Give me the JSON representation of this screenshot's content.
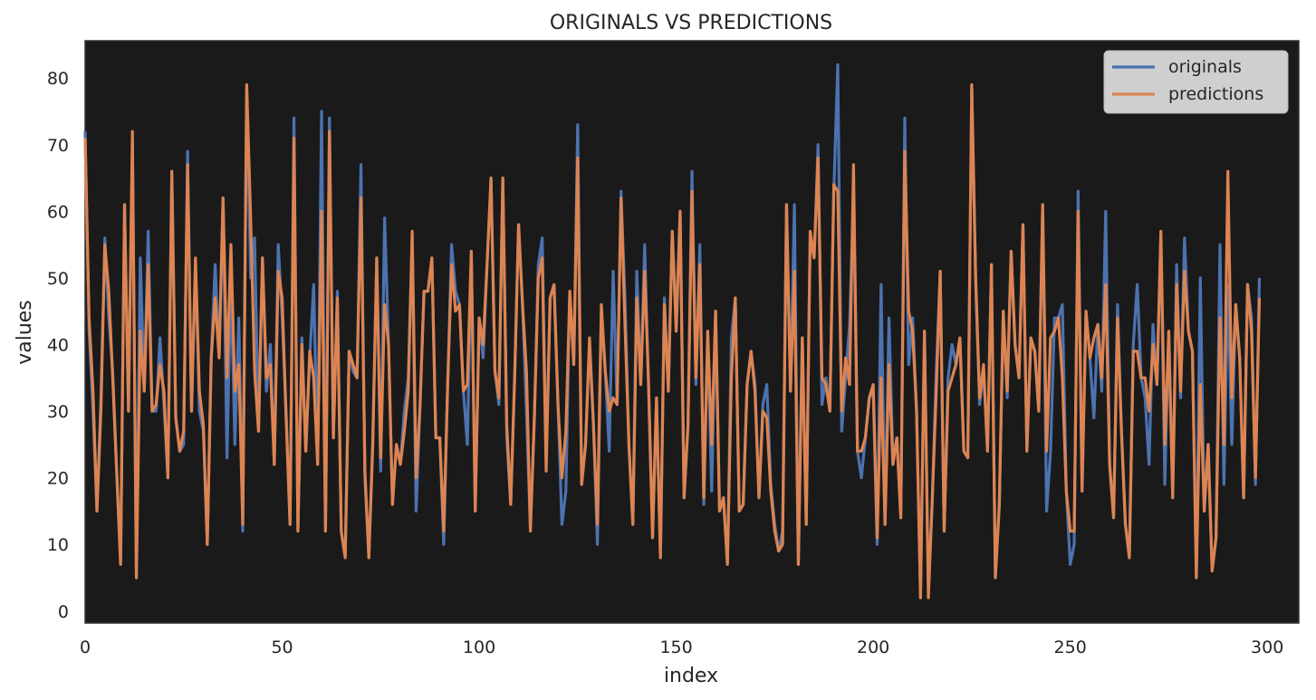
{
  "chart_data": {
    "type": "line",
    "title": "ORIGINALS VS PREDICTIONS",
    "xlabel": "index",
    "ylabel": "values",
    "xlim": [
      0,
      308
    ],
    "ylim": [
      -1.8,
      85.6
    ],
    "xticks": [
      0,
      50,
      100,
      150,
      200,
      250,
      300
    ],
    "yticks": [
      0,
      10,
      20,
      30,
      40,
      50,
      60,
      70,
      80
    ],
    "grid": false,
    "legend": "top-right",
    "background": "#1a1a1a",
    "series": [
      {
        "name": "originals",
        "color": "#4c72b0",
        "values": [
          72,
          42,
          30,
          15,
          32,
          56,
          44,
          36,
          21,
          7,
          61,
          30,
          70,
          5,
          53,
          33,
          57,
          30,
          30,
          41,
          31,
          20,
          66,
          29,
          24,
          25,
          69,
          30,
          52,
          30,
          27,
          10,
          38,
          52,
          38,
          62,
          23,
          50,
          25,
          44,
          12,
          79,
          50,
          56,
          27,
          53,
          33,
          40,
          22,
          55,
          44,
          30,
          13,
          74,
          12,
          41,
          24,
          38,
          49,
          22,
          75,
          12,
          74,
          26,
          48,
          12,
          8,
          39,
          36,
          35,
          67,
          20,
          8,
          26,
          53,
          21,
          59,
          40,
          16,
          25,
          22,
          30,
          35,
          56,
          15,
          31,
          48,
          48,
          53,
          26,
          26,
          10,
          34,
          55,
          48,
          46,
          33,
          25,
          54,
          15,
          44,
          38,
          52,
          65,
          36,
          31,
          65,
          26,
          16,
          35,
          58,
          46,
          30,
          12,
          29,
          52,
          56,
          23,
          47,
          49,
          31,
          13,
          18,
          48,
          37,
          73,
          19,
          25,
          40,
          28,
          10,
          45,
          36,
          24,
          51,
          31,
          63,
          47,
          25,
          13,
          51,
          34,
          55,
          33,
          11,
          32,
          8,
          47,
          33,
          57,
          43,
          60,
          17,
          28,
          66,
          34,
          55,
          16,
          42,
          18,
          45,
          15,
          17,
          7,
          41,
          47,
          15,
          16,
          34,
          39,
          34,
          17,
          31,
          34,
          19,
          13,
          9,
          12,
          61,
          33,
          61,
          7,
          41,
          13,
          56,
          53,
          70,
          31,
          35,
          30,
          63,
          82,
          27,
          35,
          43,
          62,
          24,
          20,
          26,
          32,
          33,
          10,
          49,
          13,
          44,
          23,
          26,
          14,
          74,
          37,
          44,
          30,
          2,
          42,
          3,
          17,
          36,
          51,
          12,
          35,
          40,
          37,
          41,
          24,
          23,
          79,
          49,
          31,
          36,
          24,
          52,
          5,
          16,
          45,
          32,
          54,
          40,
          35,
          58,
          24,
          41,
          39,
          30,
          61,
          15,
          24,
          44,
          44,
          46,
          18,
          7,
          10,
          63,
          18,
          45,
          38,
          29,
          43,
          33,
          60,
          22,
          14,
          46,
          27,
          13,
          8,
          40,
          49,
          35,
          32,
          22,
          43,
          34,
          56,
          19,
          42,
          17,
          52,
          32,
          56,
          42,
          39,
          5,
          50,
          15,
          25,
          6,
          11,
          55,
          19,
          49,
          25,
          46,
          38,
          17,
          49,
          44,
          19,
          50
        ],
        "stroke_width": 3.2
      },
      {
        "name": "predictions",
        "color": "#dd8452",
        "values": [
          71,
          44,
          33,
          15,
          30,
          55,
          48,
          35,
          21,
          7,
          61,
          30,
          72,
          5,
          42,
          33,
          52,
          30,
          31,
          37,
          33,
          20,
          66,
          29,
          24,
          27,
          67,
          30,
          53,
          33,
          28,
          10,
          38,
          47,
          38,
          62,
          35,
          55,
          33,
          37,
          13,
          79,
          59,
          36,
          27,
          53,
          35,
          37,
          22,
          51,
          47,
          29,
          13,
          71,
          12,
          40,
          24,
          39,
          35,
          22,
          60,
          12,
          72,
          26,
          47,
          12,
          8,
          39,
          37,
          35,
          62,
          21,
          8,
          25,
          53,
          23,
          46,
          40,
          16,
          25,
          22,
          27,
          33,
          57,
          20,
          31,
          48,
          48,
          53,
          26,
          26,
          12,
          34,
          52,
          45,
          46,
          33,
          34,
          54,
          15,
          44,
          40,
          52,
          65,
          36,
          32,
          65,
          28,
          16,
          35,
          58,
          46,
          36,
          12,
          29,
          50,
          53,
          21,
          47,
          49,
          31,
          20,
          27,
          48,
          37,
          68,
          19,
          25,
          41,
          28,
          13,
          46,
          36,
          30,
          32,
          31,
          62,
          43,
          25,
          13,
          47,
          34,
          51,
          34,
          11,
          32,
          8,
          46,
          33,
          57,
          42,
          60,
          17,
          28,
          63,
          35,
          52,
          17,
          42,
          25,
          45,
          15,
          17,
          7,
          35,
          47,
          15,
          16,
          34,
          39,
          33,
          17,
          30,
          29,
          18,
          12,
          9,
          10,
          61,
          33,
          51,
          7,
          41,
          13,
          57,
          53,
          68,
          35,
          34,
          30,
          64,
          63,
          30,
          38,
          34,
          67,
          24,
          24,
          26,
          32,
          34,
          11,
          35,
          13,
          37,
          22,
          26,
          14,
          69,
          45,
          42,
          30,
          2,
          42,
          2,
          17,
          33,
          51,
          12,
          33,
          35,
          37,
          41,
          24,
          23,
          79,
          50,
          32,
          37,
          24,
          52,
          5,
          16,
          45,
          33,
          54,
          40,
          35,
          58,
          24,
          41,
          39,
          30,
          61,
          24,
          41,
          42,
          44,
          35,
          18,
          12,
          12,
          60,
          18,
          45,
          38,
          41,
          43,
          35,
          49,
          22,
          14,
          44,
          27,
          13,
          8,
          39,
          39,
          35,
          35,
          30,
          40,
          34,
          57,
          25,
          42,
          17,
          49,
          33,
          51,
          42,
          39,
          5,
          34,
          15,
          25,
          6,
          11,
          44,
          25,
          66,
          32,
          46,
          38,
          17,
          49,
          42,
          20,
          47
        ],
        "stroke_width": 3.2
      }
    ]
  }
}
